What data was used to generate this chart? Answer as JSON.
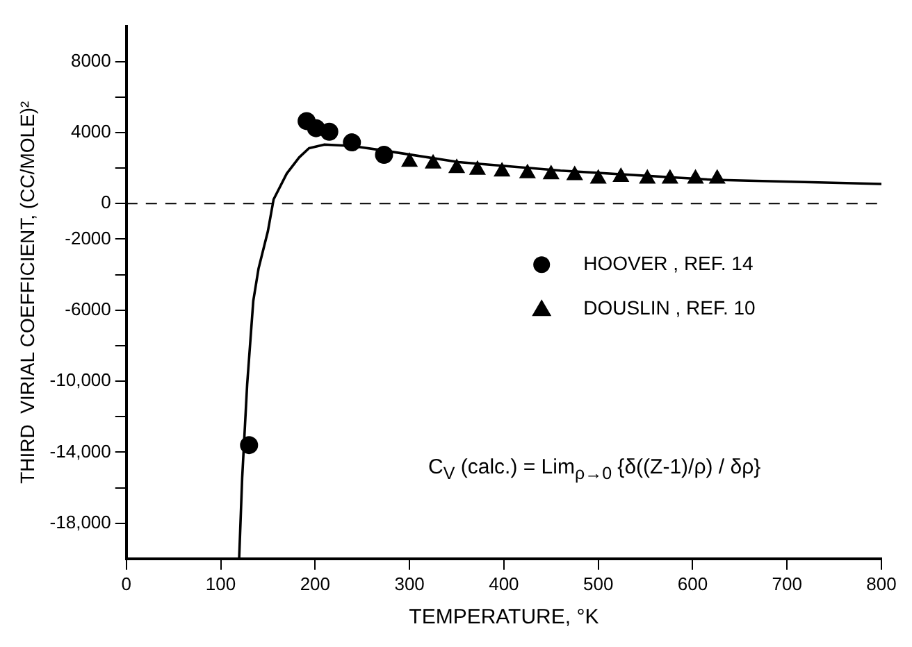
{
  "chart_data": {
    "type": "scatter",
    "xlabel": "TEMPERATURE, °K",
    "ylabel": "THIRD  VIRIAL COEFFICIENT, (CC/MOLE)²",
    "xlim": [
      0,
      800
    ],
    "xticks": [
      0,
      100,
      200,
      300,
      400,
      500,
      600,
      700,
      800
    ],
    "ylim": [
      -20000,
      10000
    ],
    "yticks": [
      8000,
      {
        "value": 6000,
        "label": null
      },
      4000,
      {
        "value": 2000,
        "label": null
      },
      0,
      -2000,
      {
        "value": -4000,
        "label": null
      },
      -6000,
      {
        "value": -8000,
        "label": null
      },
      {
        "value": -10000,
        "label": "-10,000"
      },
      {
        "value": -12000,
        "label": null
      },
      {
        "value": -14000,
        "label": "-14,000"
      },
      {
        "value": -16000,
        "label": null
      },
      {
        "value": -18000,
        "label": "-18,000"
      }
    ],
    "grid": false,
    "legend": "right",
    "ref_lines": [
      {
        "axis": "y",
        "value": 0,
        "line_style": "dashed",
        "color": "#000000"
      }
    ],
    "annotations": [
      "C$_{V}$ (calc.) = Lim$_{ρ→0}$ {δ((Z-1)/ρ) / δρ}"
    ],
    "series": [
      {
        "name": "HOOVER , REF. 14",
        "marker": "circle",
        "color": "#000000",
        "x": [
          130,
          191,
          201,
          215,
          239,
          273
        ],
        "values": [
          -13600,
          4650,
          4250,
          4050,
          3450,
          2750
        ]
      },
      {
        "name": "DOUSLIN , REF. 10",
        "marker": "triangle",
        "color": "#000000",
        "x": [
          300,
          325,
          350,
          372,
          398,
          425,
          450,
          475,
          500,
          524,
          552,
          576,
          603,
          626
        ],
        "values": [
          2350,
          2250,
          2000,
          1900,
          1800,
          1700,
          1650,
          1600,
          1400,
          1500,
          1400,
          1400,
          1400,
          1400
        ]
      },
      {
        "type": "line",
        "marker": "none",
        "line_style": "solid",
        "color": "#000000",
        "x": [
          119.5,
          122.7,
          128,
          134.5,
          140,
          150,
          156,
          170,
          183,
          193.5,
          210,
          239,
          273,
          352,
          460,
          622,
          800
        ],
        "values": [
          -20000,
          -15460,
          -10180,
          -5470,
          -3670,
          -1540,
          240,
          1700,
          2600,
          3120,
          3330,
          3250,
          2990,
          2340,
          1860,
          1340,
          1110
        ]
      }
    ]
  }
}
